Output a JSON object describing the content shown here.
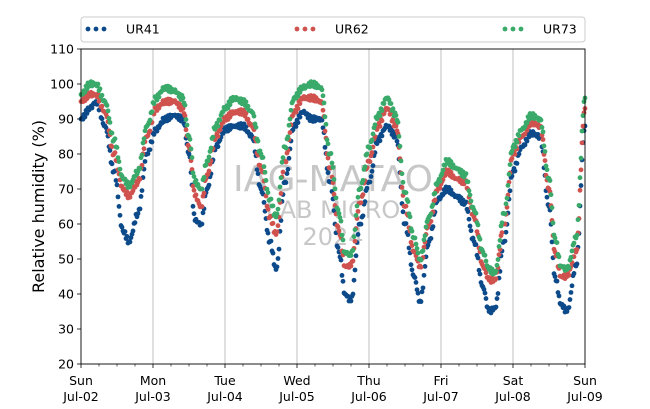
{
  "chart_data": {
    "type": "scatter",
    "ylabel": "Relative humidity (%)",
    "ylim": [
      20,
      110
    ],
    "yticks": [
      20,
      30,
      40,
      50,
      60,
      70,
      80,
      90,
      100,
      110
    ],
    "xlim": [
      "2023-07-02",
      "2023-07-09"
    ],
    "xtick_labels": [
      {
        "day": "Sun",
        "date": "Jul-02"
      },
      {
        "day": "Mon",
        "date": "Jul-03"
      },
      {
        "day": "Tue",
        "date": "Jul-04"
      },
      {
        "day": "Wed",
        "date": "Jul-05"
      },
      {
        "day": "Thu",
        "date": "Jul-06"
      },
      {
        "day": "Fri",
        "date": "Jul-07"
      },
      {
        "day": "Sat",
        "date": "Jul-08"
      },
      {
        "day": "Sun",
        "date": "Jul-09"
      }
    ],
    "grid": "vertical lines at day ticks",
    "legend_position": "top",
    "watermark": [
      "IAG-MATAO",
      "LAB MICRO",
      "2024"
    ],
    "series": [
      {
        "name": "UR41",
        "color": "#0d4a8a",
        "points": [
          [
            "Jul-02 00:00",
            90
          ],
          [
            "Jul-02 03:00",
            93
          ],
          [
            "Jul-02 05:00",
            95
          ],
          [
            "Jul-02 08:00",
            88
          ],
          [
            "Jul-02 11:00",
            75
          ],
          [
            "Jul-02 14:00",
            58
          ],
          [
            "Jul-02 16:00",
            55
          ],
          [
            "Jul-02 19:00",
            63
          ],
          [
            "Jul-02 22:00",
            80
          ],
          [
            "Jul-03 01:00",
            87
          ],
          [
            "Jul-03 04:00",
            90
          ],
          [
            "Jul-03 07:00",
            91
          ],
          [
            "Jul-03 10:00",
            90
          ],
          [
            "Jul-03 12:00",
            80
          ],
          [
            "Jul-03 14:00",
            61
          ],
          [
            "Jul-03 16:00",
            60
          ],
          [
            "Jul-03 18:00",
            70
          ],
          [
            "Jul-03 21:00",
            82
          ],
          [
            "Jul-04 00:00",
            87
          ],
          [
            "Jul-04 03:00",
            88
          ],
          [
            "Jul-04 06:00",
            88
          ],
          [
            "Jul-04 09:00",
            85
          ],
          [
            "Jul-04 12:00",
            70
          ],
          [
            "Jul-04 15:00",
            55
          ],
          [
            "Jul-04 17:00",
            47
          ],
          [
            "Jul-04 20:00",
            72
          ],
          [
            "Jul-04 23:00",
            88
          ],
          [
            "Jul-05 02:00",
            92
          ],
          [
            "Jul-05 05:00",
            90
          ],
          [
            "Jul-05 08:00",
            90
          ],
          [
            "Jul-05 11:00",
            72
          ],
          [
            "Jul-05 14:00",
            52
          ],
          [
            "Jul-05 16:00",
            40
          ],
          [
            "Jul-05 18:00",
            38
          ],
          [
            "Jul-05 21:00",
            60
          ],
          [
            "Jul-06 00:00",
            72
          ],
          [
            "Jul-06 03:00",
            84
          ],
          [
            "Jul-06 06:00",
            88
          ],
          [
            "Jul-06 09:00",
            85
          ],
          [
            "Jul-06 12:00",
            60
          ],
          [
            "Jul-06 15:00",
            45
          ],
          [
            "Jul-06 17:00",
            38
          ],
          [
            "Jul-06 20:00",
            55
          ],
          [
            "Jul-06 23:00",
            67
          ],
          [
            "Jul-07 02:00",
            70
          ],
          [
            "Jul-07 05:00",
            68
          ],
          [
            "Jul-07 08:00",
            66
          ],
          [
            "Jul-07 11:00",
            55
          ],
          [
            "Jul-07 14:00",
            42
          ],
          [
            "Jul-07 16:00",
            35
          ],
          [
            "Jul-07 18:00",
            36
          ],
          [
            "Jul-07 21:00",
            55
          ],
          [
            "Jul-08 00:00",
            75
          ],
          [
            "Jul-08 03:00",
            82
          ],
          [
            "Jul-08 06:00",
            86
          ],
          [
            "Jul-08 09:00",
            85
          ],
          [
            "Jul-08 12:00",
            65
          ],
          [
            "Jul-08 14:00",
            45
          ],
          [
            "Jul-08 16:00",
            37
          ],
          [
            "Jul-08 18:00",
            35
          ],
          [
            "Jul-08 21:00",
            48
          ],
          [
            "Jul-09 00:00",
            88
          ]
        ]
      },
      {
        "name": "UR62",
        "color": "#d0524e",
        "points": [
          [
            "Jul-02 00:00",
            95
          ],
          [
            "Jul-02 03:00",
            97
          ],
          [
            "Jul-02 05:00",
            97
          ],
          [
            "Jul-02 08:00",
            92
          ],
          [
            "Jul-02 11:00",
            80
          ],
          [
            "Jul-02 14:00",
            70
          ],
          [
            "Jul-02 16:00",
            68
          ],
          [
            "Jul-02 19:00",
            72
          ],
          [
            "Jul-02 22:00",
            85
          ],
          [
            "Jul-03 01:00",
            93
          ],
          [
            "Jul-03 04:00",
            95
          ],
          [
            "Jul-03 07:00",
            95
          ],
          [
            "Jul-03 10:00",
            93
          ],
          [
            "Jul-03 12:00",
            82
          ],
          [
            "Jul-03 14:00",
            68
          ],
          [
            "Jul-03 16:00",
            65
          ],
          [
            "Jul-03 18:00",
            74
          ],
          [
            "Jul-03 21:00",
            85
          ],
          [
            "Jul-04 00:00",
            90
          ],
          [
            "Jul-04 03:00",
            92
          ],
          [
            "Jul-04 06:00",
            92
          ],
          [
            "Jul-04 09:00",
            88
          ],
          [
            "Jul-04 12:00",
            76
          ],
          [
            "Jul-04 15:00",
            62
          ],
          [
            "Jul-04 17:00",
            57
          ],
          [
            "Jul-04 20:00",
            78
          ],
          [
            "Jul-04 23:00",
            92
          ],
          [
            "Jul-05 02:00",
            96
          ],
          [
            "Jul-05 05:00",
            96
          ],
          [
            "Jul-05 08:00",
            95
          ],
          [
            "Jul-05 11:00",
            76
          ],
          [
            "Jul-05 14:00",
            58
          ],
          [
            "Jul-05 16:00",
            48
          ],
          [
            "Jul-05 18:00",
            48
          ],
          [
            "Jul-05 21:00",
            66
          ],
          [
            "Jul-06 00:00",
            78
          ],
          [
            "Jul-06 03:00",
            88
          ],
          [
            "Jul-06 06:00",
            93
          ],
          [
            "Jul-06 09:00",
            88
          ],
          [
            "Jul-06 12:00",
            65
          ],
          [
            "Jul-06 15:00",
            52
          ],
          [
            "Jul-06 17:00",
            48
          ],
          [
            "Jul-06 20:00",
            60
          ],
          [
            "Jul-06 23:00",
            70
          ],
          [
            "Jul-07 02:00",
            75
          ],
          [
            "Jul-07 05:00",
            73
          ],
          [
            "Jul-07 08:00",
            72
          ],
          [
            "Jul-07 11:00",
            62
          ],
          [
            "Jul-07 14:00",
            48
          ],
          [
            "Jul-07 16:00",
            44
          ],
          [
            "Jul-07 18:00",
            44
          ],
          [
            "Jul-07 21:00",
            60
          ],
          [
            "Jul-08 00:00",
            80
          ],
          [
            "Jul-08 03:00",
            85
          ],
          [
            "Jul-08 06:00",
            89
          ],
          [
            "Jul-08 09:00",
            88
          ],
          [
            "Jul-08 12:00",
            70
          ],
          [
            "Jul-08 14:00",
            52
          ],
          [
            "Jul-08 16:00",
            45
          ],
          [
            "Jul-08 18:00",
            45
          ],
          [
            "Jul-08 21:00",
            52
          ],
          [
            "Jul-09 00:00",
            93
          ]
        ]
      },
      {
        "name": "UR73",
        "color": "#3aaa6a",
        "points": [
          [
            "Jul-02 00:00",
            97
          ],
          [
            "Jul-02 03:00",
            100
          ],
          [
            "Jul-02 05:00",
            100
          ],
          [
            "Jul-02 08:00",
            95
          ],
          [
            "Jul-02 11:00",
            84
          ],
          [
            "Jul-02 14:00",
            73
          ],
          [
            "Jul-02 16:00",
            71
          ],
          [
            "Jul-02 19:00",
            75
          ],
          [
            "Jul-02 22:00",
            88
          ],
          [
            "Jul-03 01:00",
            96
          ],
          [
            "Jul-03 04:00",
            99
          ],
          [
            "Jul-03 07:00",
            98
          ],
          [
            "Jul-03 10:00",
            96
          ],
          [
            "Jul-03 12:00",
            85
          ],
          [
            "Jul-03 14:00",
            72
          ],
          [
            "Jul-03 16:00",
            70
          ],
          [
            "Jul-03 18:00",
            78
          ],
          [
            "Jul-03 21:00",
            88
          ],
          [
            "Jul-04 00:00",
            93
          ],
          [
            "Jul-04 03:00",
            96
          ],
          [
            "Jul-04 06:00",
            95
          ],
          [
            "Jul-04 09:00",
            92
          ],
          [
            "Jul-04 12:00",
            80
          ],
          [
            "Jul-04 15:00",
            67
          ],
          [
            "Jul-04 17:00",
            62
          ],
          [
            "Jul-04 20:00",
            82
          ],
          [
            "Jul-04 23:00",
            96
          ],
          [
            "Jul-05 02:00",
            99
          ],
          [
            "Jul-05 05:00",
            100
          ],
          [
            "Jul-05 08:00",
            99
          ],
          [
            "Jul-05 11:00",
            80
          ],
          [
            "Jul-05 14:00",
            63
          ],
          [
            "Jul-05 16:00",
            52
          ],
          [
            "Jul-05 18:00",
            51
          ],
          [
            "Jul-05 21:00",
            70
          ],
          [
            "Jul-06 00:00",
            82
          ],
          [
            "Jul-06 03:00",
            91
          ],
          [
            "Jul-06 06:00",
            96
          ],
          [
            "Jul-06 09:00",
            91
          ],
          [
            "Jul-06 12:00",
            69
          ],
          [
            "Jul-06 15:00",
            56
          ],
          [
            "Jul-06 17:00",
            50
          ],
          [
            "Jul-06 20:00",
            62
          ],
          [
            "Jul-06 23:00",
            72
          ],
          [
            "Jul-07 02:00",
            78
          ],
          [
            "Jul-07 05:00",
            76
          ],
          [
            "Jul-07 08:00",
            74
          ],
          [
            "Jul-07 11:00",
            64
          ],
          [
            "Jul-07 14:00",
            52
          ],
          [
            "Jul-07 16:00",
            47
          ],
          [
            "Jul-07 18:00",
            46
          ],
          [
            "Jul-07 21:00",
            63
          ],
          [
            "Jul-08 00:00",
            82
          ],
          [
            "Jul-08 03:00",
            87
          ],
          [
            "Jul-08 06:00",
            91
          ],
          [
            "Jul-08 09:00",
            90
          ],
          [
            "Jul-08 12:00",
            73
          ],
          [
            "Jul-08 14:00",
            56
          ],
          [
            "Jul-08 16:00",
            48
          ],
          [
            "Jul-08 18:00",
            47
          ],
          [
            "Jul-08 21:00",
            56
          ],
          [
            "Jul-09 00:00",
            96
          ]
        ]
      }
    ]
  }
}
